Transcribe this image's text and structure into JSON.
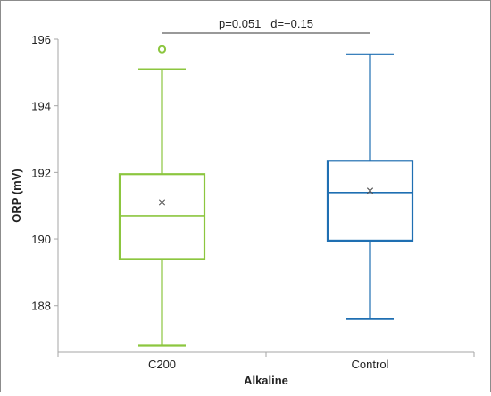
{
  "chart_data": {
    "type": "box",
    "title": "",
    "xlabel": "Alkaline",
    "ylabel": "ORP (mV)",
    "ylim": [
      186.6,
      196
    ],
    "yticks": [
      188,
      190,
      192,
      194,
      196
    ],
    "grid": false,
    "legend": "none",
    "categories": [
      "C200",
      "Control"
    ],
    "boxes": [
      {
        "category": "C200",
        "min": 186.8,
        "q1": 189.4,
        "median": 190.7,
        "q3": 191.95,
        "max": 195.1,
        "mean": 191.1,
        "outliers": [
          195.7
        ],
        "color": "#8cc63f"
      },
      {
        "category": "Control",
        "min": 187.6,
        "q1": 189.95,
        "median": 191.4,
        "q3": 192.35,
        "max": 195.55,
        "mean": 191.45,
        "outliers": [],
        "color": "#1f6fb2"
      }
    ],
    "annotation": {
      "text": "p=0.051   d=−0.15",
      "between": [
        "C200",
        "Control"
      ]
    }
  }
}
